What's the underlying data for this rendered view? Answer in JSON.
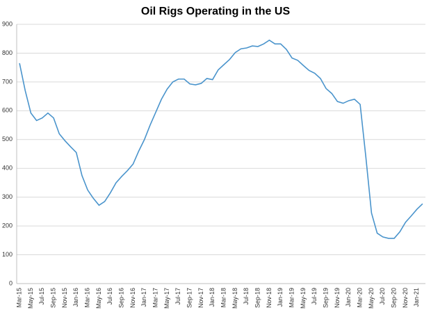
{
  "chart_data": {
    "type": "line",
    "title": "Oil Rigs Operating in the US",
    "categories": [
      "Mar-15",
      null,
      "May-15",
      null,
      "Jul-15",
      null,
      "Sep-15",
      null,
      "Nov-15",
      null,
      "Jan-16",
      null,
      "Mar-16",
      null,
      "May-16",
      null,
      "Jul-16",
      null,
      "Sep-16",
      null,
      "Nov-16",
      null,
      "Jan-17",
      null,
      "Mar-17",
      null,
      "May-17",
      null,
      "Jul-17",
      null,
      "Sep-17",
      null,
      "Nov-17",
      null,
      "Jan-18",
      null,
      "Mar-18",
      null,
      "May-18",
      null,
      "Jul-18",
      null,
      "Sep-18",
      null,
      "Nov-18",
      null,
      "Jan-19",
      null,
      "Mar-19",
      null,
      "May-19",
      null,
      "Jul-19",
      null,
      "Sep-19",
      null,
      "Nov-19",
      null,
      "Jan-20",
      null,
      "Mar-20",
      null,
      "May-20",
      null,
      "Jul-20",
      null,
      "Sep-20",
      null,
      "Nov-20",
      null,
      "Jan-21",
      null
    ],
    "series": [
      {
        "name": "Oil Rigs",
        "color": "#4a94cc",
        "values": [
          765,
          670,
          592,
          566,
          575,
          592,
          575,
          520,
          496,
          475,
          455,
          375,
          325,
          296,
          272,
          285,
          315,
          350,
          372,
          392,
          415,
          460,
          500,
          550,
          595,
          640,
          675,
          700,
          710,
          710,
          693,
          690,
          695,
          712,
          708,
          742,
          760,
          778,
          802,
          815,
          818,
          825,
          823,
          832,
          845,
          832,
          832,
          813,
          783,
          775,
          757,
          740,
          730,
          712,
          677,
          660,
          632,
          626,
          635,
          640,
          622,
          440,
          245,
          175,
          162,
          157,
          157,
          180,
          213,
          235,
          258,
          277
        ]
      }
    ],
    "ylim": [
      0,
      900
    ],
    "yticks": [
      0,
      100,
      200,
      300,
      400,
      500,
      600,
      700,
      800,
      900
    ],
    "grid": true
  }
}
